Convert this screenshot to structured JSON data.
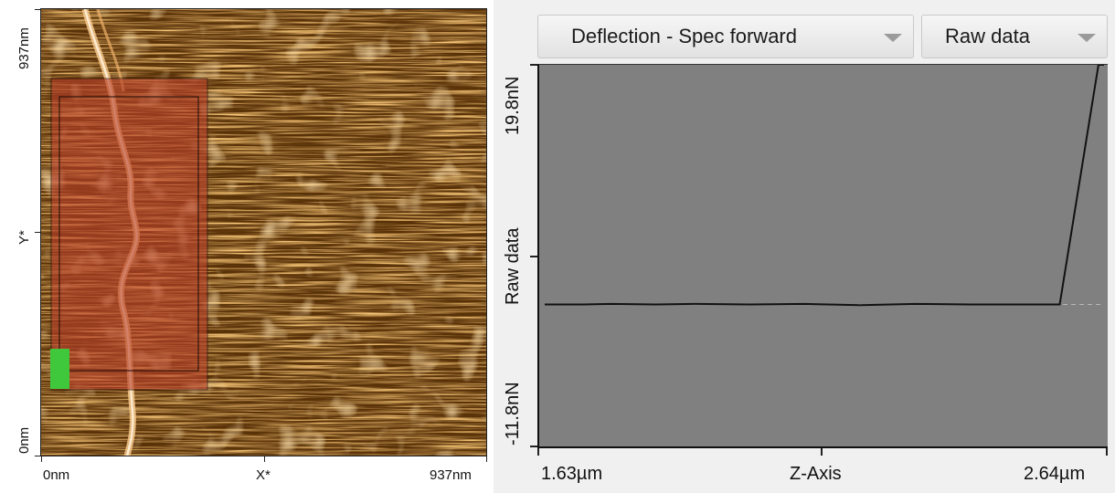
{
  "image_panel": {
    "y_max_label": "937nm",
    "y_axis_label": "Y*",
    "y_min_label": "0nm",
    "x_min_label": "0nm",
    "x_axis_label": "X*",
    "x_max_label": "937nm",
    "colors": {
      "afm_base": "#5a3208",
      "afm_highlight": "#e89a3a",
      "selection_overlay": "#b8402a",
      "marker": "#3fc83c"
    }
  },
  "plot_panel": {
    "channel_dropdown": {
      "selected": "Deflection - Spec forward"
    },
    "mode_dropdown": {
      "selected": "Raw data"
    },
    "y_max_label": "19.8nN",
    "y_axis_label": "Raw data",
    "y_min_label": "-11.8nN",
    "x_min_label": "1.63µm",
    "x_axis_label": "Z-Axis",
    "x_max_label": "2.64µm",
    "colors": {
      "plot_background": "#808080",
      "curve": "#111111"
    }
  },
  "chart_data": {
    "type": "line",
    "xlabel": "Z-Axis",
    "ylabel": "Raw data",
    "xlim": [
      1.63,
      2.64
    ],
    "ylim": [
      -11.8,
      19.8
    ],
    "x_unit": "µm",
    "y_unit": "nN",
    "series": [
      {
        "x": [
          1.63,
          1.7,
          1.75,
          1.83,
          1.9,
          2.0,
          2.1,
          2.2,
          2.3,
          2.4,
          2.5,
          2.55,
          2.56,
          2.63,
          2.64
        ],
        "values": [
          0.0,
          0.0,
          0.05,
          0.0,
          0.05,
          0.0,
          0.05,
          -0.05,
          0.05,
          0.0,
          0.0,
          0.0,
          0.0,
          19.8,
          19.8
        ]
      }
    ]
  }
}
